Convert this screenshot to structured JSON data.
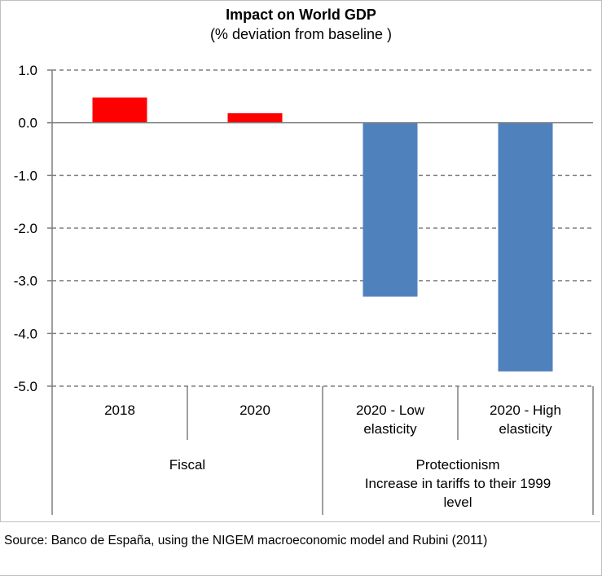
{
  "chart_data": {
    "type": "bar",
    "title": "Impact on World GDP",
    "subtitle": "(% deviation from baseline )",
    "ylim": [
      -5.0,
      1.0
    ],
    "yticks": [
      "1.0",
      "0.0",
      "-1.0",
      "-2.0",
      "-3.0",
      "-4.0",
      "-5.0"
    ],
    "grid": true,
    "categories": [
      {
        "label": [
          "2018"
        ],
        "group": "Fiscal",
        "value": 0.48,
        "color": "#ff0000"
      },
      {
        "label": [
          "2020"
        ],
        "group": "Fiscal",
        "value": 0.18,
        "color": "#ff0000"
      },
      {
        "label": [
          "2020 - Low",
          "elasticity"
        ],
        "group": "Protectionism",
        "value": -3.3,
        "color": "#4f81bd"
      },
      {
        "label": [
          "2020 - High",
          "elasticity"
        ],
        "group": "Protectionism",
        "value": -4.72,
        "color": "#4f81bd"
      }
    ],
    "groups": [
      {
        "name": "Fiscal",
        "label": [
          "Fiscal"
        ]
      },
      {
        "name": "Protectionism",
        "label": [
          "Protectionism",
          "Increase in tariffs to their 1999",
          "level"
        ]
      }
    ]
  },
  "source": "Source: Banco de España, using the NIGEM macroeconomic model and Rubini (2011)"
}
